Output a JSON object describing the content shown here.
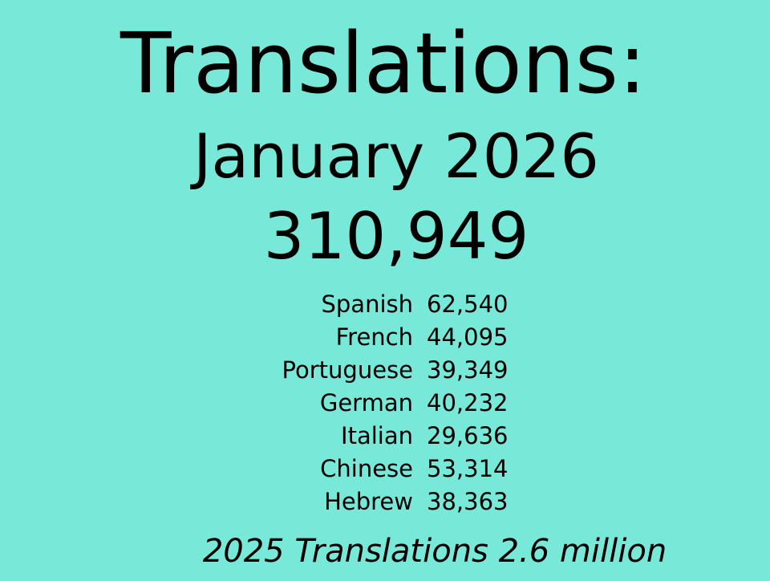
{
  "title": "Translations:",
  "month": "January 2026",
  "total": "310,949",
  "languages": [
    {
      "name": "Spanish",
      "count": "62,540"
    },
    {
      "name": "French",
      "count": "44,095"
    },
    {
      "name": "Portuguese",
      "count": "39,349"
    },
    {
      "name": "German",
      "count": "40,232"
    },
    {
      "name": "Italian",
      "count": "29,636"
    },
    {
      "name": "Chinese",
      "count": "53,314"
    },
    {
      "name": "Hebrew",
      "count": "38,363"
    }
  ],
  "footer": "2025 Translations 2.6 million",
  "colors": {
    "background": "#78e8d8",
    "text": "#000000"
  }
}
